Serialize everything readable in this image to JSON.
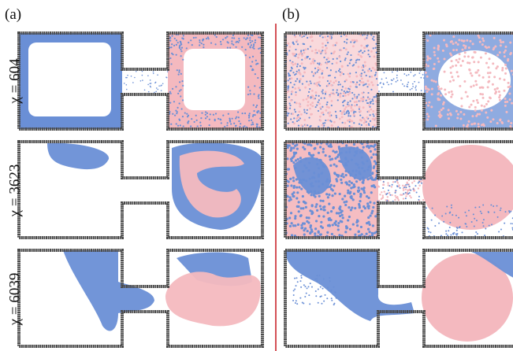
{
  "panels": [
    "(a)",
    "(b)"
  ],
  "rows": [
    {
      "label": "χ = 604"
    },
    {
      "label": "χ = 3623"
    },
    {
      "label": "χ = 6039"
    }
  ]
}
